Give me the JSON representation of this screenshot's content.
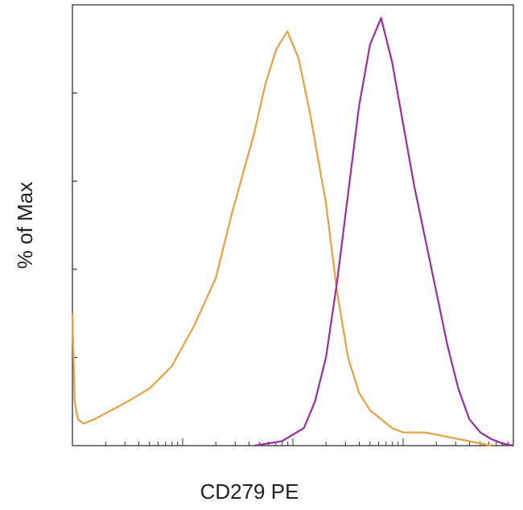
{
  "chart_data": {
    "type": "line",
    "title": "",
    "xlabel": "CD279 PE",
    "ylabel": "% of Max",
    "x_scale": "log",
    "grid": false,
    "legend": "none",
    "series": [
      {
        "color": "#E8A040",
        "x": [
          0,
          0.02,
          0.05,
          0.1,
          0.2,
          0.35,
          0.5,
          0.7,
          0.9,
          1.1,
          1.3,
          1.45,
          1.55,
          1.65,
          1.75,
          1.85,
          1.95,
          2.05,
          2.15,
          2.3,
          2.4,
          2.5,
          2.6,
          2.7,
          2.8,
          2.9,
          3.0,
          3.2,
          3.4,
          3.6,
          3.8
        ],
        "y": [
          0.3,
          0.1,
          0.06,
          0.05,
          0.06,
          0.08,
          0.1,
          0.13,
          0.18,
          0.27,
          0.38,
          0.53,
          0.62,
          0.71,
          0.82,
          0.9,
          0.94,
          0.88,
          0.76,
          0.55,
          0.35,
          0.2,
          0.12,
          0.08,
          0.06,
          0.04,
          0.03,
          0.03,
          0.02,
          0.01,
          0.0
        ]
      },
      {
        "color": "#9B2E9F",
        "x": [
          1.65,
          1.9,
          2.1,
          2.2,
          2.3,
          2.4,
          2.5,
          2.6,
          2.7,
          2.8,
          2.9,
          3.0,
          3.1,
          3.2,
          3.3,
          3.4,
          3.5,
          3.6,
          3.7,
          3.8,
          3.9,
          4.0
        ],
        "y": [
          0.0,
          0.01,
          0.04,
          0.1,
          0.2,
          0.37,
          0.57,
          0.77,
          0.91,
          0.97,
          0.87,
          0.73,
          0.59,
          0.47,
          0.35,
          0.23,
          0.13,
          0.06,
          0.03,
          0.015,
          0.005,
          0.0
        ]
      }
    ],
    "xlim": [
      0,
      4
    ],
    "ylim": [
      0,
      1.0
    ]
  }
}
